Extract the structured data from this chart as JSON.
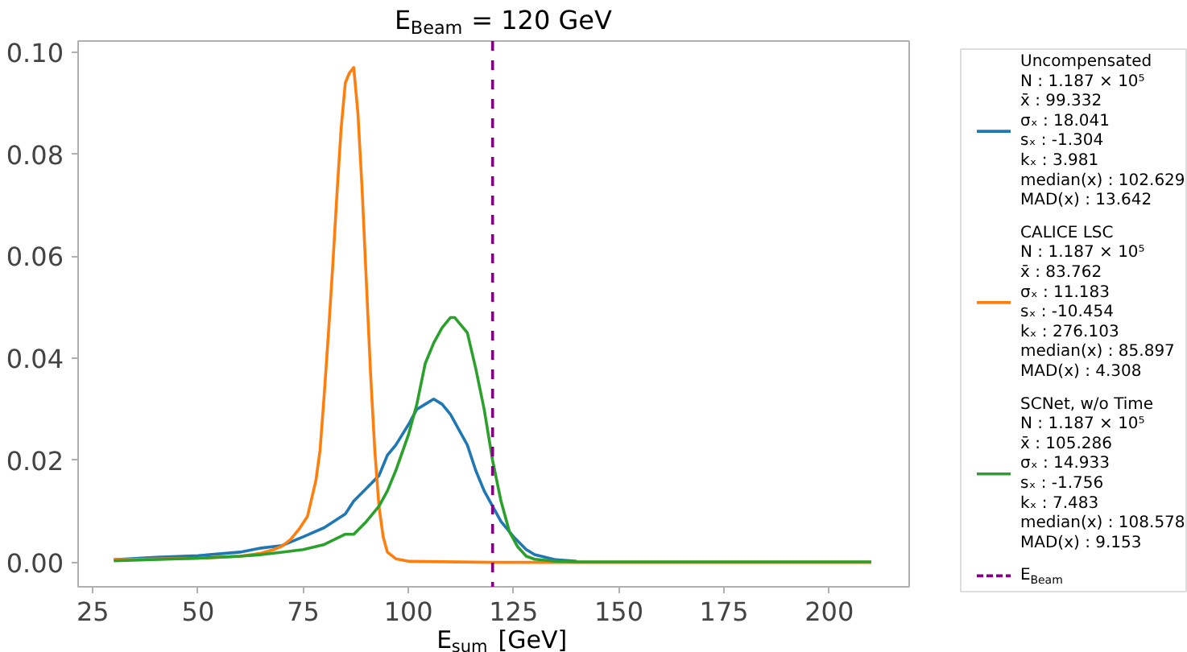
{
  "chart_data": {
    "type": "line",
    "title": "E$_{Beam}$ = 120 GeV",
    "xlabel": "E$_{sum}$ [GeV]",
    "xlim": [
      21.5,
      219
    ],
    "ylim": [
      -0.0048,
      0.1022
    ],
    "xticks": [
      25,
      50,
      75,
      100,
      125,
      150,
      175,
      200
    ],
    "yticks": [
      {
        "value": 0,
        "label": "0.00"
      },
      {
        "value": 0.02,
        "label": "0.02"
      },
      {
        "value": 0.04,
        "label": "0.04"
      },
      {
        "value": 0.06,
        "label": "0.06"
      },
      {
        "value": 0.08,
        "label": "0.08"
      },
      {
        "value": 0.1,
        "label": "0.10"
      }
    ],
    "grid": false,
    "legend": "right",
    "marker": "none",
    "line_style": "solid",
    "series": [
      {
        "name": "Uncompensated\nN : 1.187 × 10⁵\nx̄ : 99.332\nσₓ : 18.041\nsₓ : -1.304\nkₓ : 3.981\nmedian(x) : 102.629\nMAD(x) : 13.642",
        "color": "#1f77b4",
        "x": [
          30,
          40,
          50,
          60,
          65,
          70,
          75,
          80,
          85,
          87,
          90,
          93,
          95,
          97,
          100,
          102,
          104,
          106,
          108,
          110,
          112,
          114,
          116,
          118,
          120,
          122,
          125,
          128,
          130,
          135,
          140
        ],
        "values": [
          0.0005,
          0.001,
          0.0013,
          0.002,
          0.0028,
          0.0033,
          0.005,
          0.0068,
          0.0095,
          0.012,
          0.0145,
          0.017,
          0.021,
          0.023,
          0.027,
          0.03,
          0.031,
          0.032,
          0.031,
          0.029,
          0.026,
          0.023,
          0.018,
          0.014,
          0.011,
          0.008,
          0.005,
          0.0025,
          0.0015,
          0.0005,
          0.0002
        ]
      },
      {
        "name": "CALICE LSC\nN : 1.187 × 10⁵\nx̄ : 83.762\nσₓ : 11.183\nsₓ : -10.454\nkₓ : 276.103\nmedian(x) : 85.897\nMAD(x) : 4.308",
        "color": "#ff7f0e",
        "x": [
          30,
          50,
          60,
          65,
          68,
          70,
          72,
          74,
          76,
          78,
          79,
          80,
          81,
          82,
          83,
          84,
          85,
          86,
          87,
          88,
          89,
          90,
          91,
          92,
          93,
          94,
          95,
          97,
          100,
          120,
          150,
          180,
          210
        ],
        "values": [
          0.0005,
          0.0008,
          0.0012,
          0.0018,
          0.0025,
          0.0032,
          0.0045,
          0.0065,
          0.009,
          0.016,
          0.022,
          0.033,
          0.045,
          0.058,
          0.072,
          0.085,
          0.094,
          0.096,
          0.097,
          0.088,
          0.073,
          0.055,
          0.037,
          0.022,
          0.011,
          0.005,
          0.002,
          0.0007,
          0.0002,
          0.0,
          0.0,
          0.0,
          0.0
        ]
      },
      {
        "name": "SCNet, w/o Time\nN : 1.187 × 10⁵\nx̄ : 105.286\nσₓ : 14.933\nsₓ : -1.756\nkₓ : 7.483\nmedian(x) : 108.578\nMAD(x) : 9.153",
        "color": "#2ca02c",
        "x": [
          30,
          50,
          60,
          65,
          70,
          75,
          80,
          85,
          87,
          90,
          93,
          95,
          97,
          100,
          102,
          104,
          106,
          108,
          110,
          111,
          112,
          114,
          116,
          118,
          120,
          122,
          124,
          126,
          128,
          130,
          135,
          140,
          170,
          210
        ],
        "values": [
          0.0003,
          0.0008,
          0.0012,
          0.0015,
          0.002,
          0.0025,
          0.0035,
          0.0055,
          0.0055,
          0.008,
          0.011,
          0.014,
          0.018,
          0.025,
          0.031,
          0.039,
          0.043,
          0.046,
          0.048,
          0.048,
          0.047,
          0.045,
          0.038,
          0.03,
          0.02,
          0.012,
          0.006,
          0.003,
          0.0012,
          0.0006,
          0.0002,
          0.0001,
          0.0001,
          0.0001
        ]
      }
    ],
    "ref_lines": [
      {
        "axis": "x",
        "value": 120,
        "label": "E$_{Beam}$",
        "color": "#800080",
        "line_style": "dashed"
      }
    ]
  }
}
